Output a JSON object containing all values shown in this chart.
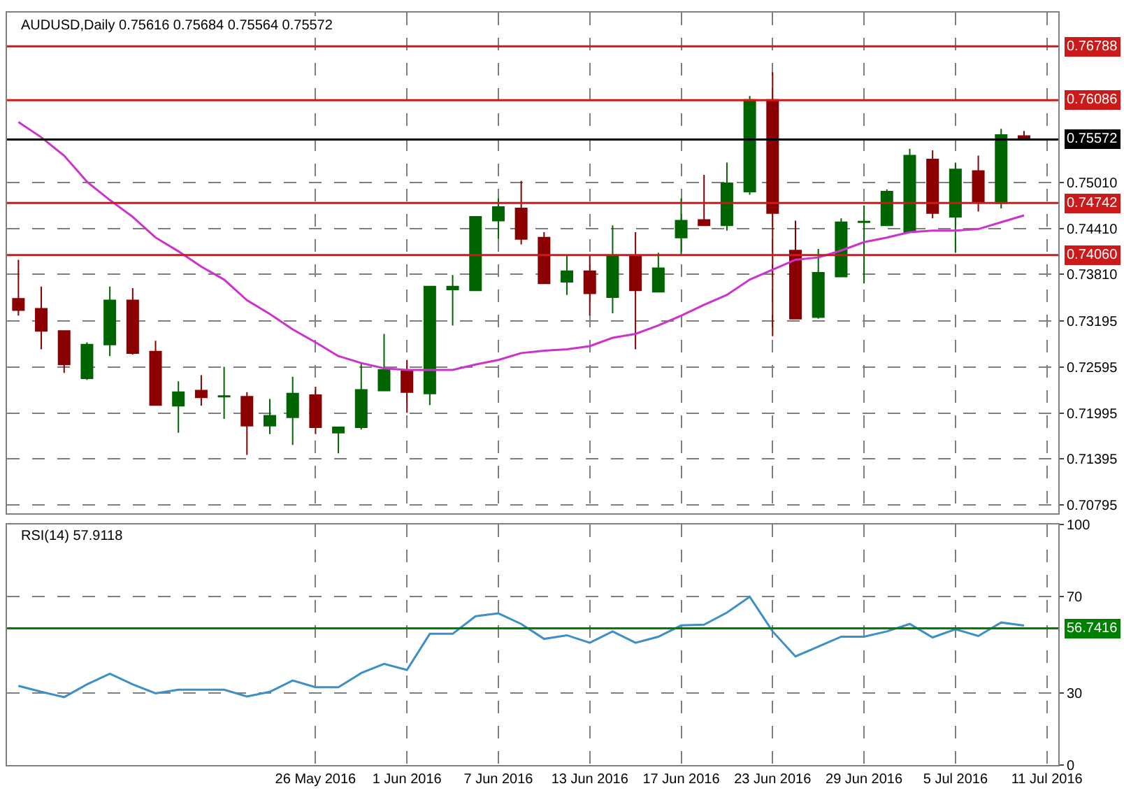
{
  "chart_data": [
    {
      "type": "candlestick",
      "title": "AUDUSD,Daily 0.75616 0.75684 0.75564 0.75572",
      "tick_labels": "y",
      "grid": true,
      "ylim": [
        0.7069,
        0.7723
      ],
      "yticks": [
        {
          "value": 0.7501,
          "label": "0.75010"
        },
        {
          "value": 0.7441,
          "label": "0.74410"
        },
        {
          "value": 0.7381,
          "label": "0.73810"
        },
        {
          "value": 0.73195,
          "label": "0.73195"
        },
        {
          "value": 0.72595,
          "label": "0.72595"
        },
        {
          "value": 0.71995,
          "label": "0.71995"
        },
        {
          "value": 0.71395,
          "label": "0.71395"
        },
        {
          "value": 0.70795,
          "label": "0.70795"
        }
      ],
      "ref_lines": [
        {
          "axis": "y",
          "value": 0.76788,
          "label": "0.76788",
          "color": "#cc1a1a"
        },
        {
          "axis": "y",
          "value": 0.76086,
          "label": "0.76086",
          "color": "#cc1a1a"
        },
        {
          "axis": "y",
          "value": 0.75572,
          "label": "0.75572",
          "color": "#000000"
        },
        {
          "axis": "y",
          "value": 0.74742,
          "label": "0.74742",
          "color": "#cc1a1a"
        },
        {
          "axis": "y",
          "value": 0.7406,
          "label": "0.74060",
          "color": "#cc1a1a"
        }
      ],
      "series": [
        {
          "ohlc": [
            [
              0.7349,
              0.74,
              0.7327,
              0.7334
            ],
            [
              0.7336,
              0.7365,
              0.7283,
              0.7307
            ],
            [
              0.7307,
              0.7307,
              0.7252,
              0.7263
            ],
            [
              0.7245,
              0.7292,
              0.7243,
              0.7289
            ],
            [
              0.7289,
              0.7365,
              0.7274,
              0.7347
            ],
            [
              0.7347,
              0.7363,
              0.7276,
              0.7278
            ],
            [
              0.728,
              0.7294,
              0.721,
              0.721
            ],
            [
              0.7209,
              0.7241,
              0.7174,
              0.7227
            ],
            [
              0.7229,
              0.7249,
              0.7209,
              0.722
            ],
            [
              0.7221,
              0.726,
              0.7192,
              0.7222
            ],
            [
              0.7221,
              0.7227,
              0.7145,
              0.7183
            ],
            [
              0.7183,
              0.7218,
              0.7172,
              0.7196
            ],
            [
              0.7194,
              0.7247,
              0.7158,
              0.7225
            ],
            [
              0.7223,
              0.7234,
              0.7172,
              0.7181
            ],
            [
              0.7174,
              0.7181,
              0.7147,
              0.7181
            ],
            [
              0.7181,
              0.7265,
              0.7178,
              0.723
            ],
            [
              0.7229,
              0.7303,
              0.7229,
              0.7256
            ],
            [
              0.7256,
              0.7269,
              0.72,
              0.7227
            ],
            [
              0.7225,
              0.7365,
              0.721,
              0.7365
            ],
            [
              0.7361,
              0.738,
              0.7314,
              0.7365
            ],
            [
              0.736,
              0.7456,
              0.736,
              0.7456
            ],
            [
              0.7451,
              0.748,
              0.7427,
              0.7469
            ],
            [
              0.7467,
              0.7503,
              0.742,
              0.7427
            ],
            [
              0.7429,
              0.7436,
              0.7369,
              0.7369
            ],
            [
              0.7371,
              0.7405,
              0.7354,
              0.7385
            ],
            [
              0.7385,
              0.7405,
              0.7327,
              0.7356
            ],
            [
              0.7351,
              0.7445,
              0.733,
              0.7405
            ],
            [
              0.7405,
              0.7436,
              0.7283,
              0.736
            ],
            [
              0.7358,
              0.7409,
              0.7358,
              0.7389
            ],
            [
              0.7429,
              0.748,
              0.7407,
              0.7451
            ],
            [
              0.7452,
              0.7511,
              0.7445,
              0.7445
            ],
            [
              0.7445,
              0.7527,
              0.7438,
              0.75
            ],
            [
              0.7489,
              0.7614,
              0.7485,
              0.7609
            ],
            [
              0.7609,
              0.7645,
              0.73,
              0.7461
            ],
            [
              0.7412,
              0.7451,
              0.7323,
              0.7323
            ],
            [
              0.7325,
              0.7414,
              0.7323,
              0.7383
            ],
            [
              0.7378,
              0.7454,
              0.7378,
              0.7449
            ],
            [
              0.7449,
              0.7471,
              0.7369,
              0.745
            ],
            [
              0.7445,
              0.7492,
              0.7445,
              0.7489
            ],
            [
              0.7436,
              0.7545,
              0.7436,
              0.7536
            ],
            [
              0.7531,
              0.7543,
              0.7454,
              0.7461
            ],
            [
              0.7456,
              0.7527,
              0.7409,
              0.7518
            ],
            [
              0.7516,
              0.7536,
              0.7463,
              0.7476
            ],
            [
              0.7474,
              0.7571,
              0.7467,
              0.7563
            ],
            [
              0.75616,
              0.75684,
              0.75564,
              0.75572
            ],
            null
          ],
          "colors": [
            "#8b0000",
            "#8b0000",
            "#8b0000",
            "#006400",
            "#006400",
            "#8b0000",
            "#8b0000",
            "#006400",
            "#8b0000",
            "#006400",
            "#8b0000",
            "#006400",
            "#006400",
            "#8b0000",
            "#006400",
            "#006400",
            "#006400",
            "#8b0000",
            "#006400",
            "#006400",
            "#006400",
            "#006400",
            "#8b0000",
            "#8b0000",
            "#006400",
            "#8b0000",
            "#006400",
            "#8b0000",
            "#006400",
            "#006400",
            "#8b0000",
            "#006400",
            "#006400",
            "#8b0000",
            "#8b0000",
            "#006400",
            "#006400",
            "#006400",
            "#006400",
            "#006400",
            "#8b0000",
            "#006400",
            "#8b0000",
            "#006400",
            "#8b0000",
            null
          ]
        },
        {
          "type": "line",
          "color": "#cc33cc",
          "values": [
            0.758,
            0.756,
            0.7536,
            0.7502,
            0.7478,
            0.7456,
            0.7429,
            0.7411,
            0.7391,
            0.7374,
            0.7347,
            0.7329,
            0.7309,
            0.7292,
            0.7274,
            0.7265,
            0.7258,
            0.7256,
            0.7256,
            0.7256,
            0.7263,
            0.7269,
            0.7278,
            0.7281,
            0.7283,
            0.7287,
            0.7298,
            0.7303,
            0.7314,
            0.7327,
            0.7341,
            0.7354,
            0.7374,
            0.7387,
            0.74,
            0.7403,
            0.7412,
            0.7423,
            0.7429,
            0.7436,
            0.7438,
            0.7438,
            0.744,
            0.7449,
            0.7458,
            null
          ]
        }
      ]
    },
    {
      "type": "line",
      "title": "RSI(14) 57.9118",
      "grid": true,
      "categories": [
        null,
        null,
        null,
        null,
        null,
        null,
        null,
        null,
        null,
        null,
        null,
        null,
        null,
        "26 May 2016",
        null,
        null,
        null,
        "1 Jun 2016",
        null,
        null,
        null,
        "7 Jun 2016",
        null,
        null,
        null,
        "13 Jun 2016",
        null,
        null,
        null,
        "17 Jun 2016",
        null,
        null,
        null,
        "23 Jun 2016",
        null,
        null,
        null,
        "29 Jun 2016",
        null,
        null,
        null,
        "5 Jul 2016",
        null,
        null,
        null,
        "11 Jul 2016"
      ],
      "ylim": [
        0,
        100
      ],
      "yticks": [
        0,
        30,
        70,
        100
      ],
      "ref_lines": [
        {
          "axis": "y",
          "value": 56.7416,
          "label": "56.7416",
          "color": "#008000"
        }
      ],
      "series": [
        {
          "color": "#3d8fc4",
          "values": [
            32.9,
            30.4,
            28.2,
            33.5,
            37.9,
            33.5,
            29.8,
            31.3,
            31.3,
            31.3,
            28.5,
            30.4,
            35.1,
            32.3,
            32.3,
            38.2,
            42.0,
            39.5,
            54.5,
            54.5,
            61.8,
            63.0,
            58.6,
            52.4,
            53.9,
            50.8,
            55.5,
            50.8,
            53.3,
            58.0,
            58.3,
            63.3,
            69.9,
            55.5,
            45.1,
            49.2,
            53.3,
            53.3,
            55.5,
            58.6,
            53.0,
            56.4,
            53.6,
            59.2,
            57.9118,
            null
          ]
        }
      ]
    }
  ]
}
